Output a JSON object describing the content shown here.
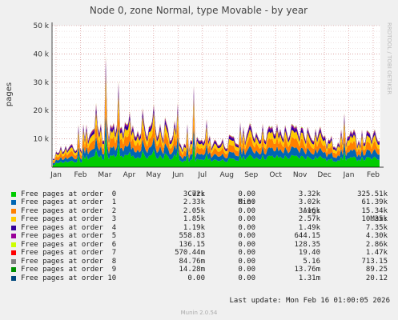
{
  "chart_data": {
    "type": "area",
    "stacked": true,
    "title": "Node 0, zone Normal, type Movable - by year",
    "ylabel": "pages",
    "ylim": [
      0,
      50000
    ],
    "yticks": [
      {
        "value": 10000,
        "label": "10 k"
      },
      {
        "value": 20000,
        "label": "20 k"
      },
      {
        "value": 30000,
        "label": "30 k"
      },
      {
        "value": 40000,
        "label": "40 k"
      },
      {
        "value": 50000,
        "label": "50 k"
      }
    ],
    "xticks": [
      "Jan",
      "Feb",
      "Mar",
      "Apr",
      "May",
      "Jun",
      "Jul",
      "Aug",
      "Sep",
      "Oct",
      "Nov",
      "Dec",
      "Jan",
      "Feb"
    ],
    "grid": true,
    "side_label": "RRDTOOL / TOBI OETIKER",
    "series": [
      {
        "name": "Free pages at order  0",
        "color": "#00cc00",
        "cur": "3.72k",
        "min": "0.00",
        "avg": "3.32k",
        "max": "325.51k"
      },
      {
        "name": "Free pages at order  1",
        "color": "#0066b3",
        "cur": "2.33k",
        "min": "0.00",
        "avg": "3.02k",
        "max": "61.39k"
      },
      {
        "name": "Free pages at order  2",
        "color": "#ff8000",
        "cur": "2.05k",
        "min": "0.00",
        "avg": "3.16k",
        "max": "15.34k"
      },
      {
        "name": "Free pages at order  3",
        "color": "#ffcc00",
        "cur": "1.85k",
        "min": "0.00",
        "avg": "2.57k",
        "max": "10.35k"
      },
      {
        "name": "Free pages at order  4",
        "color": "#330099",
        "cur": "1.19k",
        "min": "0.00",
        "avg": "1.49k",
        "max": "7.35k"
      },
      {
        "name": "Free pages at order  5",
        "color": "#990099",
        "cur": "558.83",
        "min": "0.00",
        "avg": "644.15",
        "max": "4.30k"
      },
      {
        "name": "Free pages at order  6",
        "color": "#ccff00",
        "cur": "136.15",
        "min": "0.00",
        "avg": "128.35",
        "max": "2.86k"
      },
      {
        "name": "Free pages at order  7",
        "color": "#ff0000",
        "cur": "570.44m",
        "min": "0.00",
        "avg": "19.40",
        "max": "1.47k"
      },
      {
        "name": "Free pages at order  8",
        "color": "#808080",
        "cur": "84.76m",
        "min": "0.00",
        "avg": "5.16",
        "max": "713.15"
      },
      {
        "name": "Free pages at order  9",
        "color": "#008f00",
        "cur": "14.28m",
        "min": "0.00",
        "avg": "13.76m",
        "max": "89.25"
      },
      {
        "name": "Free pages at order 10",
        "color": "#00487d",
        "cur": "0.00",
        "min": "0.00",
        "avg": "1.31m",
        "max": "20.12"
      }
    ]
  },
  "legend": {
    "cur": "Cur:",
    "min": "Min:",
    "avg": "Avg:",
    "max": "Max:"
  },
  "footer": {
    "last_update": "Last update: Mon Feb 16 01:00:05 2026",
    "munin_version": "Munin 2.0.54"
  }
}
